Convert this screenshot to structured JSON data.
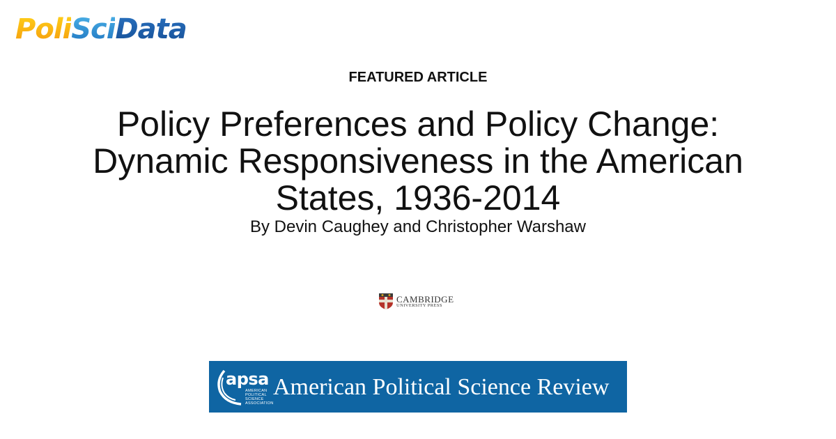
{
  "brand": {
    "part1": "Poli",
    "part2": "Sci",
    "part3": "Data"
  },
  "featured_label": "FEATURED ARTICLE",
  "article": {
    "title_lines": [
      "Policy Preferences and Policy Change:",
      "Dynamic Responsiveness in the American",
      "States, 1936-2014"
    ],
    "byline": "By Devin Caughey and Christopher Warshaw"
  },
  "publisher": {
    "line1": "CAMBRIDGE",
    "line2": "UNIVERSITY PRESS"
  },
  "journal_banner": {
    "apsa": "apsa",
    "apsa_sub": [
      "AMERICAN",
      "POLITICAL",
      "SCIENCE",
      "ASSOCIATION"
    ],
    "journal_name": "American Political Science Review",
    "color": "#0f65a3"
  }
}
